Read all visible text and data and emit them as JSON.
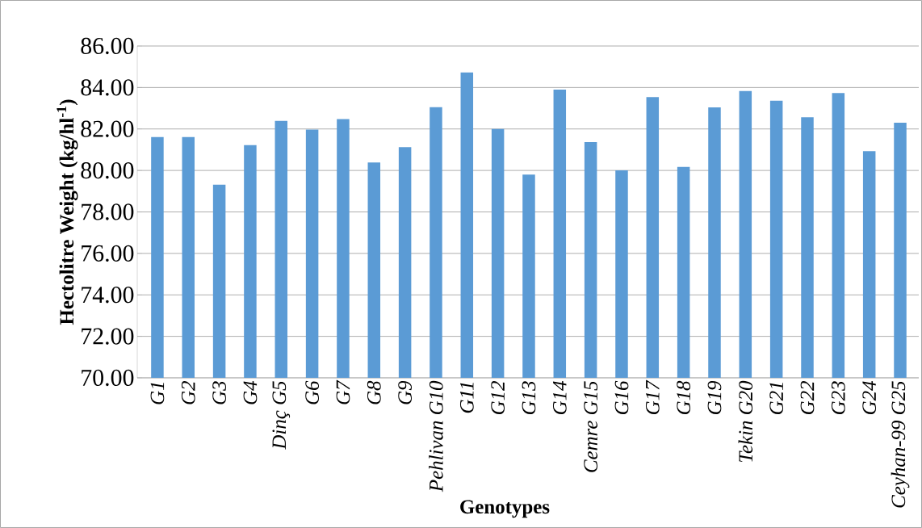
{
  "chart_data": {
    "type": "bar",
    "xlabel": "**Genotypes**",
    "ylabel": "**Hectolitre Weight (kg/hl$^{-1}$)**",
    "categories": [
      "G1",
      "G2",
      "G3",
      "G4",
      "Dinç G5",
      "G6",
      "G7",
      "G8",
      "G9",
      "Pehlivan G10",
      "G11",
      "G12",
      "G13",
      "G14",
      "Cemre G15",
      "G16",
      "G17",
      "G18",
      "G19",
      "Tekin G20",
      "G21",
      "G22",
      "G23",
      "G24",
      "Ceyhan-99 G25"
    ],
    "values": [
      81.61,
      81.61,
      79.31,
      81.22,
      82.39,
      81.97,
      82.48,
      80.38,
      81.12,
      83.05,
      84.72,
      82.0,
      79.8,
      83.9,
      81.37,
      80.0,
      83.54,
      80.17,
      83.04,
      83.83,
      83.36,
      82.56,
      83.73,
      80.93,
      82.3
    ],
    "color": "#5b9bd5",
    "ylim": [
      70,
      86
    ],
    "yticks": [
      {
        "value": 70,
        "label": "70.00"
      },
      {
        "value": 72,
        "label": "72.00"
      },
      {
        "value": 74,
        "label": "74.00"
      },
      {
        "value": 76,
        "label": "76.00"
      },
      {
        "value": 78,
        "label": "78.00"
      },
      {
        "value": 80,
        "label": "80.00"
      },
      {
        "value": 82,
        "label": "82.00"
      },
      {
        "value": 84,
        "label": "84.00"
      },
      {
        "value": 86,
        "label": "86.00"
      }
    ],
    "grid": "y"
  }
}
